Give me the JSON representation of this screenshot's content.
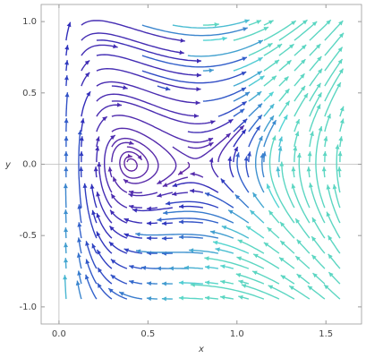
{
  "chart_data": {
    "type": "streamplot",
    "x_label": "x",
    "y_label": "y",
    "xlim": [
      -0.1,
      1.7
    ],
    "ylim": [
      -1.12,
      1.12
    ],
    "xticks": [
      {
        "value": 0,
        "label": "0.0"
      },
      {
        "value": 0.5,
        "label": "0.5"
      },
      {
        "value": 1,
        "label": "1.0"
      },
      {
        "value": 1.5,
        "label": "1.5"
      }
    ],
    "yticks": [
      {
        "value": -1,
        "label": "-1.0"
      },
      {
        "value": -0.5,
        "label": "-0.5"
      },
      {
        "value": 0,
        "label": "0.0"
      },
      {
        "value": 0.5,
        "label": "0.5"
      },
      {
        "value": 1,
        "label": "1.0"
      }
    ],
    "axes_lines": true
  }
}
